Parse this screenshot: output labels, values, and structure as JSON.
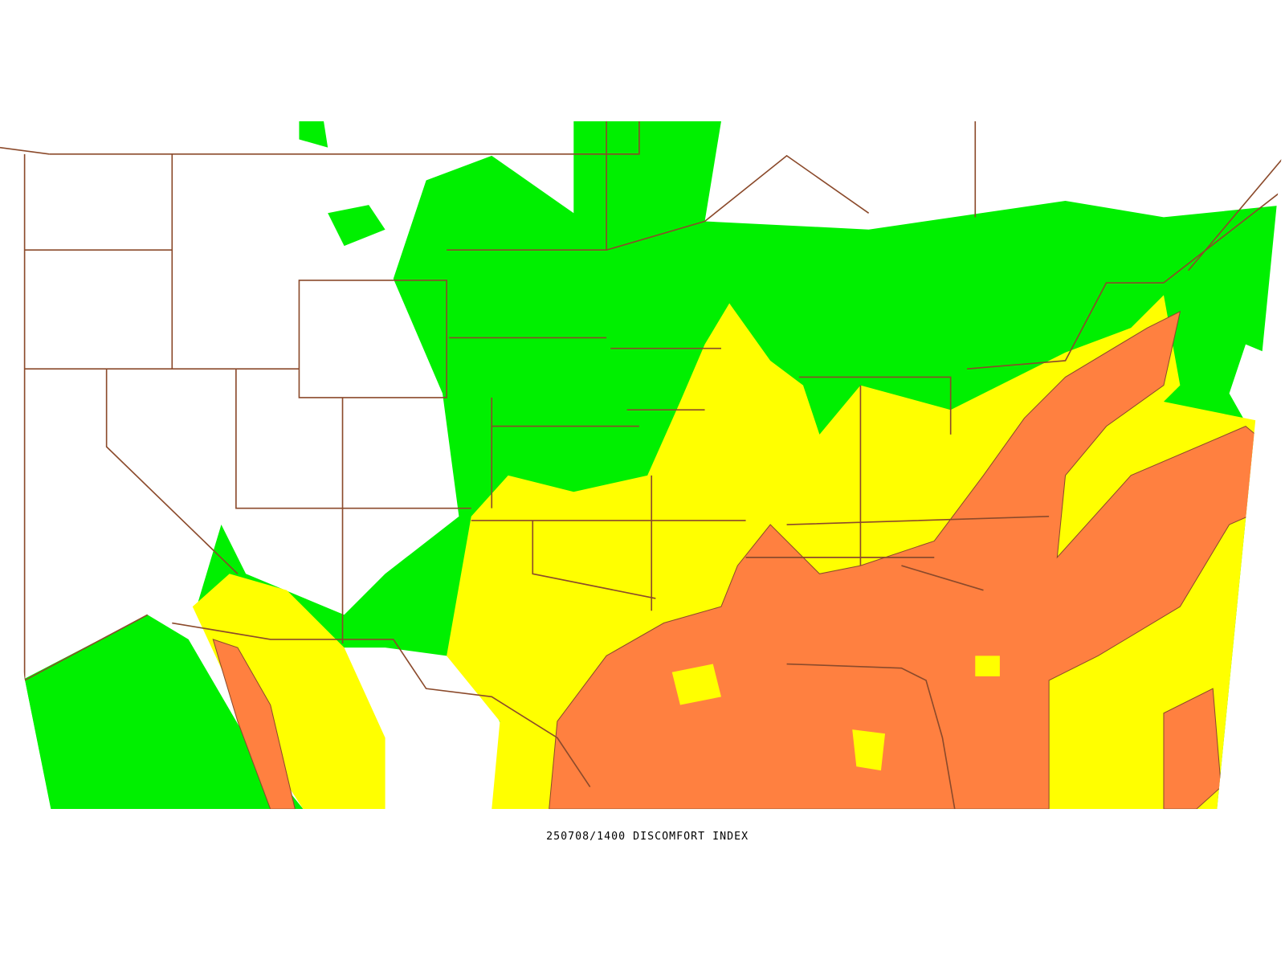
{
  "map": {
    "caption": "250708/1400 DISCOMFORT INDEX"
  }
}
